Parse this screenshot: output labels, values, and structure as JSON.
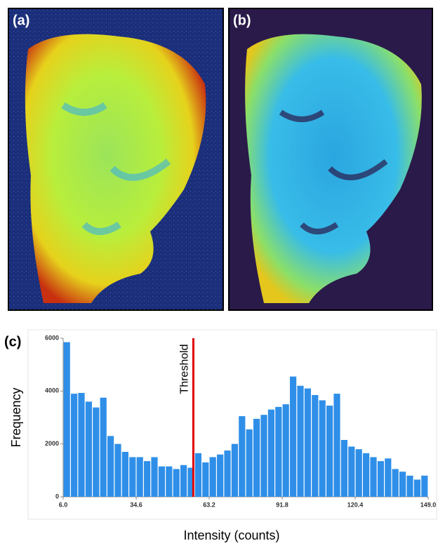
{
  "panels": {
    "a": "(a)",
    "b": "(b)",
    "c": "(c)"
  },
  "chart_data": {
    "type": "histogram",
    "ylabel": "Frequency",
    "xlabel": "Intensity (counts)",
    "threshold": {
      "value": 57,
      "label": "Threshold"
    },
    "color": "#2f8fe8",
    "threshold_color": "#e00000",
    "bins": [
      6,
      8.86,
      11.72,
      14.58,
      17.44,
      20.3,
      23.16,
      26.02,
      28.88,
      31.74,
      34.6,
      37.46,
      40.32,
      43.18,
      46.04,
      48.9,
      51.76,
      54.62,
      57.48,
      60.34,
      63.2,
      66.06,
      68.92,
      71.78,
      74.64,
      77.5,
      80.36,
      83.22,
      86.08,
      88.94,
      91.8,
      94.66,
      97.52,
      100.38,
      103.24,
      106.1,
      108.96,
      111.82,
      114.68,
      117.54,
      120.4,
      123.26,
      126.12,
      128.98,
      131.84,
      134.7,
      137.56,
      140.42,
      143.28,
      146.14,
      149
    ],
    "values": [
      5850,
      3900,
      3930,
      3600,
      3380,
      3750,
      2300,
      2000,
      1700,
      1500,
      1500,
      1350,
      1500,
      1150,
      1150,
      1050,
      1200,
      1100,
      1650,
      1300,
      1500,
      1600,
      1750,
      2000,
      3050,
      2550,
      2950,
      3100,
      3300,
      3400,
      3500,
      4550,
      4200,
      4100,
      3850,
      3650,
      3450,
      3900,
      2150,
      1900,
      1800,
      1650,
      1500,
      1350,
      1450,
      1050,
      950,
      800,
      650,
      800
    ],
    "xlim": [
      6,
      149
    ],
    "ylim": [
      0,
      6000
    ],
    "xticks": [
      {
        "value": 6,
        "label": "6.0"
      },
      {
        "value": 34.6,
        "label": "34.6"
      },
      {
        "value": 63.2,
        "label": "63.2"
      },
      {
        "value": 91.8,
        "label": "91.8"
      },
      {
        "value": 120.4,
        "label": "120.4"
      },
      {
        "value": 149,
        "label": "149.0"
      }
    ],
    "yticks": [
      0,
      2000,
      4000,
      6000
    ]
  }
}
